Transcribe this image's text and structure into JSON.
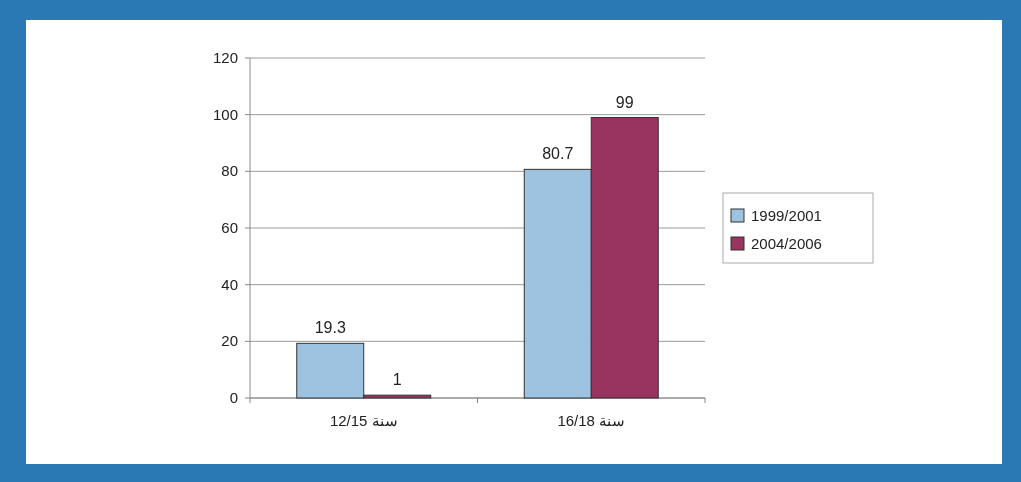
{
  "chart_data": {
    "type": "bar",
    "categories": [
      "سنة 12/15",
      "سنة 16/18"
    ],
    "series": [
      {
        "name": "1999/2001",
        "color": "#9dc3e0",
        "values": [
          19.3,
          80.7
        ]
      },
      {
        "name": "2004/2006",
        "color": "#993360",
        "values": [
          1,
          99
        ]
      }
    ],
    "ylim": [
      0,
      120
    ],
    "yticks": [
      0,
      20,
      40,
      60,
      80,
      100,
      120
    ],
    "grid": "y",
    "legend": "right",
    "data_labels": true
  }
}
